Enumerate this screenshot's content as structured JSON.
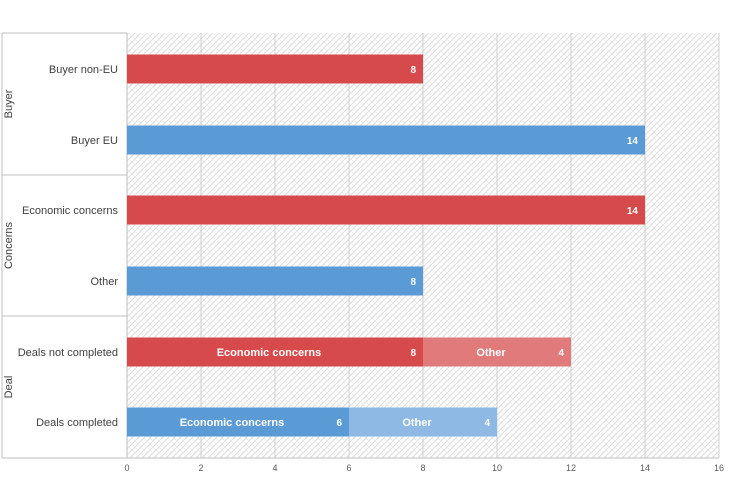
{
  "chart_data": {
    "type": "bar",
    "orientation": "horizontal",
    "stacked": true,
    "xlim": [
      0,
      16
    ],
    "x_ticks": [
      0,
      2,
      4,
      6,
      8,
      10,
      12,
      14,
      16
    ],
    "grid": true,
    "groups": [
      {
        "label": "Buyer",
        "rows": [
          {
            "label": "Buyer non-EU",
            "segments": [
              {
                "value": 8,
                "color": "#d64a4b",
                "label": ""
              }
            ]
          },
          {
            "label": "Buyer EU",
            "segments": [
              {
                "value": 14,
                "color": "#5b9bd5",
                "label": ""
              }
            ]
          }
        ]
      },
      {
        "label": "Concerns",
        "rows": [
          {
            "label": "Economic concerns",
            "segments": [
              {
                "value": 14,
                "color": "#d64a4b",
                "label": ""
              }
            ]
          },
          {
            "label": "Other",
            "segments": [
              {
                "value": 8,
                "color": "#5b9bd5",
                "label": ""
              }
            ]
          }
        ]
      },
      {
        "label": "Deal",
        "rows": [
          {
            "label": "Deals not completed",
            "segments": [
              {
                "value": 8,
                "color": "#d64a4b",
                "label": "Economic concerns"
              },
              {
                "value": 4,
                "color": "#e17b7b",
                "label": "Other"
              }
            ]
          },
          {
            "label": "Deals completed",
            "segments": [
              {
                "value": 6,
                "color": "#5b9bd5",
                "label": "Economic concerns"
              },
              {
                "value": 4,
                "color": "#8db9e4",
                "label": "Other"
              }
            ]
          }
        ]
      }
    ]
  }
}
